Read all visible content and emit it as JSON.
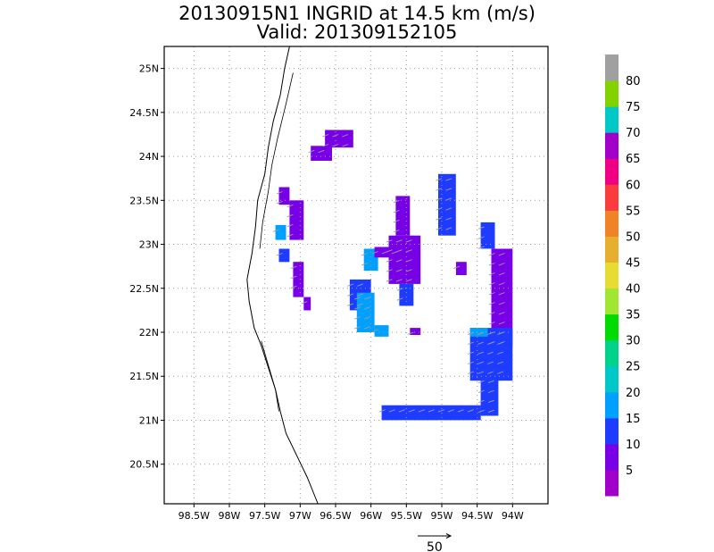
{
  "title": {
    "line1": "20130915N1 INGRID at 14.5 km (m/s)",
    "line2": "Valid: 201309152105"
  },
  "map": {
    "lon_range": [
      -98.92,
      -93.5
    ],
    "lat_range": [
      20.05,
      25.25
    ],
    "x_ticks": [
      {
        "value": -98.5,
        "label": "98.5W"
      },
      {
        "value": -98.0,
        "label": "98W"
      },
      {
        "value": -97.5,
        "label": "97.5W"
      },
      {
        "value": -97.0,
        "label": "97W"
      },
      {
        "value": -96.5,
        "label": "96.5W"
      },
      {
        "value": -96.0,
        "label": "96W"
      },
      {
        "value": -95.5,
        "label": "95.5W"
      },
      {
        "value": -95.0,
        "label": "95W"
      },
      {
        "value": -94.5,
        "label": "94.5W"
      },
      {
        "value": -94.0,
        "label": "94W"
      }
    ],
    "y_ticks": [
      {
        "value": 20.5,
        "label": "20.5N"
      },
      {
        "value": 21.0,
        "label": "21N"
      },
      {
        "value": 21.5,
        "label": "21.5N"
      },
      {
        "value": 22.0,
        "label": "22N"
      },
      {
        "value": 22.5,
        "label": "22.5N"
      },
      {
        "value": 23.0,
        "label": "23N"
      },
      {
        "value": 23.5,
        "label": "23.5N"
      },
      {
        "value": 24.0,
        "label": "24N"
      },
      {
        "value": 24.5,
        "label": "24.5N"
      },
      {
        "value": 25.0,
        "label": "25N"
      }
    ],
    "grid": "dotted",
    "coastline": [
      [
        -97.15,
        25.25
      ],
      [
        -97.22,
        25.0
      ],
      [
        -97.28,
        24.7
      ],
      [
        -97.38,
        24.4
      ],
      [
        -97.45,
        24.1
      ],
      [
        -97.5,
        23.8
      ],
      [
        -97.6,
        23.5
      ],
      [
        -97.63,
        23.2
      ],
      [
        -97.68,
        22.9
      ],
      [
        -97.75,
        22.6
      ],
      [
        -97.72,
        22.35
      ],
      [
        -97.65,
        22.05
      ],
      [
        -97.55,
        21.85
      ],
      [
        -97.45,
        21.6
      ],
      [
        -97.35,
        21.35
      ],
      [
        -97.28,
        21.1
      ],
      [
        -97.2,
        20.85
      ],
      [
        -97.05,
        20.6
      ],
      [
        -96.9,
        20.35
      ],
      [
        -96.75,
        20.05
      ]
    ],
    "lagoon": [
      [
        -97.1,
        24.95
      ],
      [
        -97.2,
        24.6
      ],
      [
        -97.32,
        24.2
      ],
      [
        -97.4,
        23.9
      ],
      [
        -97.45,
        23.6
      ],
      [
        -97.53,
        23.25
      ],
      [
        -97.57,
        22.95
      ]
    ],
    "lagoon2": [
      [
        -97.55,
        21.9
      ],
      [
        -97.44,
        21.6
      ],
      [
        -97.35,
        21.35
      ],
      [
        -97.3,
        21.1
      ]
    ]
  },
  "chart_data": {
    "type": "heatmap",
    "title": "20130915N1 INGRID at 14.5 km (m/s)",
    "subtitle": "Valid: 201309152105",
    "xlabel": "",
    "ylabel": "",
    "xlim": [
      -98.92,
      -93.5
    ],
    "ylim": [
      20.05,
      25.25
    ],
    "units": "m/s",
    "wind_speed_cells": [
      {
        "lon_range": [
          -96.85,
          -96.55
        ],
        "lat_range": [
          23.95,
          24.12
        ],
        "speed": 5
      },
      {
        "lon_range": [
          -96.65,
          -96.25
        ],
        "lat_range": [
          24.1,
          24.3
        ],
        "speed": 5
      },
      {
        "lon_range": [
          -97.3,
          -97.15
        ],
        "lat_range": [
          23.45,
          23.65
        ],
        "speed": 5
      },
      {
        "lon_range": [
          -97.15,
          -96.95
        ],
        "lat_range": [
          23.05,
          23.5
        ],
        "speed": 5
      },
      {
        "lon_range": [
          -97.35,
          -97.2
        ],
        "lat_range": [
          23.05,
          23.22
        ],
        "speed": 15
      },
      {
        "lon_range": [
          -97.3,
          -97.15
        ],
        "lat_range": [
          22.8,
          22.95
        ],
        "speed": 10
      },
      {
        "lon_range": [
          -97.1,
          -96.95
        ],
        "lat_range": [
          22.4,
          22.8
        ],
        "speed": 5
      },
      {
        "lon_range": [
          -96.95,
          -96.85
        ],
        "lat_range": [
          22.25,
          22.4
        ],
        "speed": 5
      },
      {
        "lon_range": [
          -96.3,
          -96.0
        ],
        "lat_range": [
          22.25,
          22.6
        ],
        "speed": 10
      },
      {
        "lon_range": [
          -96.2,
          -95.95
        ],
        "lat_range": [
          22.0,
          22.45
        ],
        "speed": 15
      },
      {
        "lon_range": [
          -95.95,
          -95.75
        ],
        "lat_range": [
          21.95,
          22.08
        ],
        "speed": 15
      },
      {
        "lon_range": [
          -96.1,
          -95.9
        ],
        "lat_range": [
          22.7,
          22.95
        ],
        "speed": 15
      },
      {
        "lon_range": [
          -95.95,
          -95.55
        ],
        "lat_range": [
          22.85,
          22.97
        ],
        "speed": 5
      },
      {
        "lon_range": [
          -95.75,
          -95.3
        ],
        "lat_range": [
          22.55,
          23.1
        ],
        "speed": 5
      },
      {
        "lon_range": [
          -95.65,
          -95.45
        ],
        "lat_range": [
          23.1,
          23.55
        ],
        "speed": 5
      },
      {
        "lon_range": [
          -95.6,
          -95.4
        ],
        "lat_range": [
          22.3,
          22.55
        ],
        "speed": 10
      },
      {
        "lon_range": [
          -95.05,
          -94.8
        ],
        "lat_range": [
          23.1,
          23.8
        ],
        "speed": 10
      },
      {
        "lon_range": [
          -94.8,
          -94.65
        ],
        "lat_range": [
          22.65,
          22.8
        ],
        "speed": 5
      },
      {
        "lon_range": [
          -95.45,
          -95.3
        ],
        "lat_range": [
          21.97,
          22.05
        ],
        "speed": 5
      },
      {
        "lon_range": [
          -94.45,
          -94.25
        ],
        "lat_range": [
          22.95,
          23.25
        ],
        "speed": 10
      },
      {
        "lon_range": [
          -94.3,
          -94.0
        ],
        "lat_range": [
          21.85,
          22.95
        ],
        "speed": 5
      },
      {
        "lon_range": [
          -94.6,
          -94.0
        ],
        "lat_range": [
          21.45,
          22.05
        ],
        "speed": 10
      },
      {
        "lon_range": [
          -94.6,
          -94.35
        ],
        "lat_range": [
          21.95,
          22.05
        ],
        "speed": 15
      },
      {
        "lon_range": [
          -94.45,
          -94.2
        ],
        "lat_range": [
          21.05,
          21.5
        ],
        "speed": 10
      },
      {
        "lon_range": [
          -95.85,
          -94.45
        ],
        "lat_range": [
          21.0,
          21.17
        ],
        "speed": 10
      }
    ],
    "colorbar": {
      "ticks": [
        "5",
        "10",
        "15",
        "20",
        "25",
        "30",
        "35",
        "40",
        "45",
        "50",
        "55",
        "60",
        "65",
        "70",
        "75",
        "80"
      ],
      "colors": [
        "#a000c8",
        "#7800e6",
        "#1e3cff",
        "#00a0ff",
        "#00c8c8",
        "#00d28c",
        "#00dc00",
        "#a0e632",
        "#e6dc32",
        "#e6af2d",
        "#f08228",
        "#fa3c3c",
        "#f00082",
        "#a000c8",
        "#00c8c8",
        "#82d200",
        "#a0a0a0"
      ]
    },
    "reference_vector": "50"
  }
}
